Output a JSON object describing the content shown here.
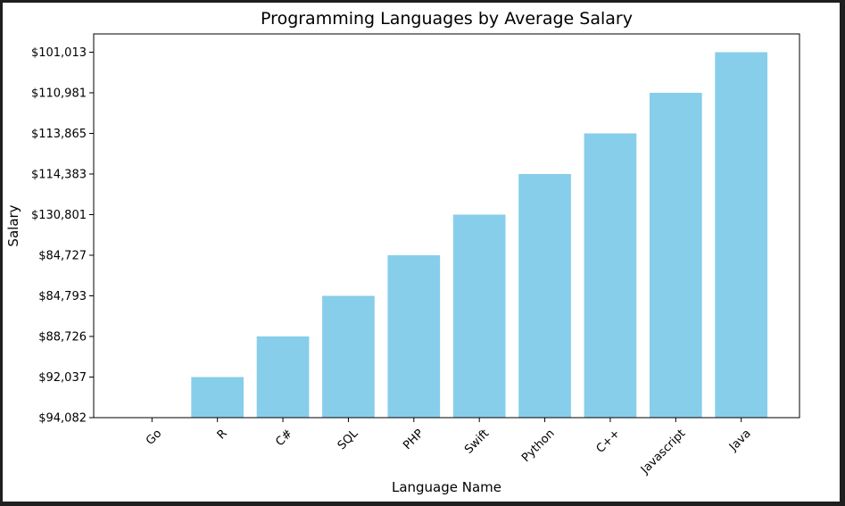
{
  "chart_data": {
    "type": "bar",
    "title": "Programming Languages by Average Salary",
    "xlabel": "Language Name",
    "ylabel": "Salary",
    "categories": [
      "Go",
      "R",
      "C#",
      "SQL",
      "PHP",
      "Swift",
      "Python",
      "C++",
      "Javascript",
      "Java"
    ],
    "values": [
      0,
      1,
      2,
      3,
      4,
      5,
      6,
      7,
      8,
      9
    ],
    "y_tick_labels": [
      "$94,082",
      "$92,037",
      "$88,726",
      "$84,793",
      "$84,727",
      "$130,801",
      "$114,383",
      "$113,865",
      "$110,981",
      "$101,013"
    ],
    "ylim": [
      0,
      9
    ],
    "bar_color": "#87ceeb",
    "grid": false,
    "legend": "none",
    "x_tick_rotation_deg": 45
  }
}
